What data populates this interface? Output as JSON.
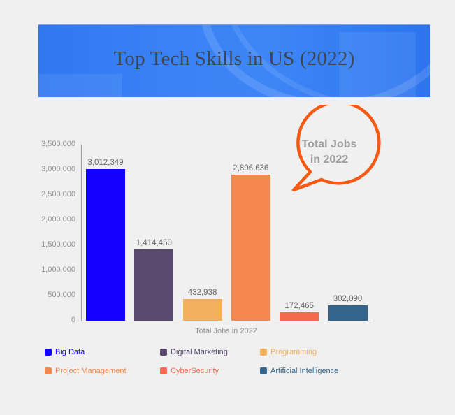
{
  "banner": {
    "title": "Top Tech Skills in US (2022)"
  },
  "callout": {
    "line1": "Total Jobs",
    "line2": "in 2022",
    "stroke": "#f55a14"
  },
  "chart_data": {
    "type": "bar",
    "title": "Top Tech Skills in US (2022)",
    "xlabel": "Total Jobs in 2022",
    "ylabel": "",
    "ylim": [
      0,
      3500000
    ],
    "yticks": [
      0,
      500000,
      1000000,
      1500000,
      2000000,
      2500000,
      3000000,
      3500000
    ],
    "ytick_labels": [
      "0",
      "500,000",
      "1,000,000",
      "1,500,000",
      "2,000,000",
      "2,500,000",
      "3,000,000",
      "3,500,000"
    ],
    "categories": [
      "Big Data",
      "Digital Marketing",
      "Programming",
      "Project Management",
      "CyberSecurity",
      "Artificial Intelligence"
    ],
    "values": [
      3012349,
      1414450,
      432938,
      2896636,
      172465,
      302090
    ],
    "value_labels": [
      "3,012,349",
      "1,414,450",
      "432,938",
      "2,896,636",
      "172,465",
      "302,090"
    ],
    "colors": [
      "#1400ff",
      "#5a4a70",
      "#f2b05c",
      "#f5894d",
      "#f5694e",
      "#33648c"
    ],
    "grid": false,
    "legend_position": "bottom",
    "annotation": "Total Jobs in 2022"
  },
  "legend": [
    {
      "label": "Big Data",
      "color": "#1400ff"
    },
    {
      "label": "Digital Marketing",
      "color": "#5a4a70"
    },
    {
      "label": "Programming",
      "color": "#f2b05c"
    },
    {
      "label": "Project Management",
      "color": "#f5894d"
    },
    {
      "label": "CyberSecurity",
      "color": "#f5694e"
    },
    {
      "label": "Artificial Intelligence",
      "color": "#33648c"
    }
  ]
}
